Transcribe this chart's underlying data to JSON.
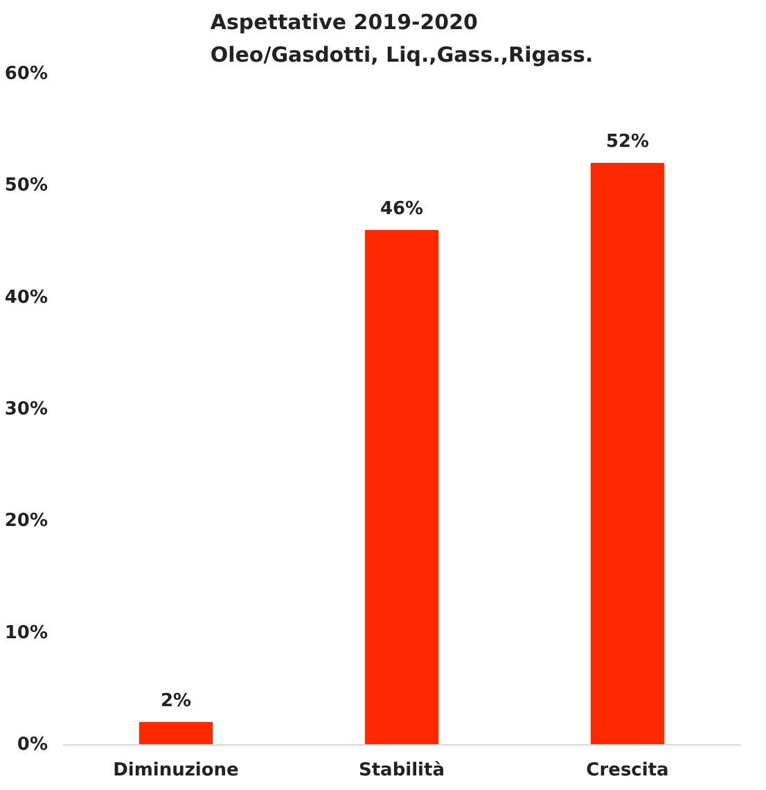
{
  "chart_data": {
    "type": "bar",
    "title": "Aspettative 2019-2020\nOleo/Gasdotti, Liq.,Gass.,Rigass.",
    "categories": [
      "Diminuzione",
      "Stabilità",
      "Crescita"
    ],
    "values": [
      2,
      46,
      52
    ],
    "color": "#ff2a00",
    "ylim": [
      0,
      60
    ],
    "yticks": [
      {
        "value": 0,
        "label": "0%"
      },
      {
        "value": 10,
        "label": "10%"
      },
      {
        "value": 20,
        "label": "20%"
      },
      {
        "value": 30,
        "label": "30%"
      },
      {
        "value": 40,
        "label": "40%"
      },
      {
        "value": 50,
        "label": "50%"
      },
      {
        "value": 60,
        "label": "60%"
      }
    ],
    "value_labels": [
      "2%",
      "46%",
      "52%"
    ],
    "grid": false
  }
}
